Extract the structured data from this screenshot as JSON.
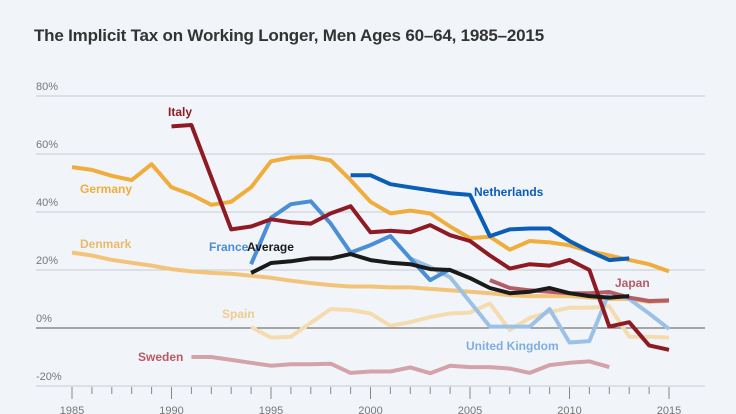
{
  "chart_data": {
    "type": "line",
    "title": "The Implicit Tax on Working Longer, Men Ages 60–64, 1985–2015",
    "xlabel": "",
    "ylabel": "",
    "xlim": [
      1985,
      2015
    ],
    "ylim": [
      -20,
      80
    ],
    "x_ticks": [
      "1985",
      "1990",
      "1995",
      "2000",
      "2005",
      "2010",
      "2015"
    ],
    "y_ticks": [
      "80%",
      "60%",
      "40%",
      "20%",
      "0%",
      "-20%"
    ],
    "grid": true,
    "background": "#f1f5f9",
    "series": [
      {
        "name": "Denmark",
        "color": "#f2c47a",
        "x": [
          1985,
          1986,
          1987,
          1988,
          1989,
          1990,
          1991,
          1992,
          1993,
          1994,
          1995,
          1996,
          1997,
          1998,
          1999,
          2000,
          2001,
          2002,
          2003,
          2004,
          2005,
          2006,
          2007,
          2008,
          2009,
          2010,
          2011,
          2012,
          2013,
          2014,
          2015
        ],
        "y": [
          26,
          25,
          23.5,
          22.5,
          21.5,
          20.3,
          19.5,
          19,
          18.7,
          18,
          17.3,
          16.3,
          15.5,
          14.8,
          14.3,
          14.3,
          14,
          14,
          13.5,
          13,
          12.5,
          12,
          11.3,
          11,
          11,
          11,
          10.5,
          10,
          10,
          9,
          9.3
        ]
      },
      {
        "name": "Spain",
        "color": "#f5dcae",
        "x": [
          1994,
          1995,
          1996,
          1997,
          1998,
          1999,
          2000,
          2001,
          2002,
          2003,
          2004,
          2005,
          2006,
          2007,
          2008,
          2009,
          2010,
          2011,
          2012,
          2013,
          2014,
          2015
        ],
        "y": [
          0.3,
          -3.3,
          -3,
          1.8,
          6.5,
          6.2,
          5,
          0.8,
          2,
          3.8,
          5,
          5.3,
          8.5,
          -0.7,
          3.5,
          5.5,
          7,
          7,
          7.5,
          -3,
          -3,
          -3.3
        ]
      },
      {
        "name": "Sweden",
        "color": "#d4a3aa",
        "x": [
          1991,
          1992,
          1993,
          1994,
          1995,
          1996,
          1997,
          1998,
          1999,
          2000,
          2001,
          2002,
          2003,
          2004,
          2005,
          2006,
          2007,
          2008,
          2009,
          2010,
          2011,
          2012
        ],
        "y": [
          -10,
          -10,
          -11,
          -12,
          -13,
          -12.5,
          -12.5,
          -12.3,
          -15.5,
          -15,
          -15,
          -13.6,
          -15.6,
          -13,
          -13.5,
          -13.5,
          -14,
          -15.5,
          -12.8,
          -12,
          -11.5,
          -13.5
        ]
      },
      {
        "name": "United Kingdom",
        "color": "#9cc1e6",
        "x": [
          2002,
          2003,
          2004,
          2005,
          2006,
          2007,
          2008,
          2009,
          2010,
          2011,
          2012,
          2013,
          2014,
          2015
        ],
        "y": [
          24,
          21,
          17.5,
          9,
          0.5,
          0.5,
          0.5,
          6.5,
          -5,
          -4.5,
          12.4,
          10,
          5,
          -0.3
        ]
      },
      {
        "name": "Japan",
        "color": "#b55d66",
        "x": [
          2006,
          2007,
          2008,
          2009,
          2010,
          2011,
          2012,
          2013,
          2014,
          2015
        ],
        "y": [
          16.5,
          13.8,
          13,
          12.5,
          12,
          12,
          12.4,
          10.5,
          9.3,
          9.5
        ]
      },
      {
        "name": "Germany",
        "color": "#f0ad3c",
        "x": [
          1985,
          1986,
          1987,
          1988,
          1989,
          1990,
          1991,
          1992,
          1993,
          1994,
          1995,
          1996,
          1997,
          1998,
          1999,
          2000,
          2001,
          2002,
          2003,
          2004,
          2005,
          2006,
          2007,
          2008,
          2009,
          2010,
          2011,
          2012,
          2013,
          2014,
          2015
        ],
        "y": [
          55.5,
          54.5,
          52.5,
          51,
          56.5,
          48.5,
          46,
          42.5,
          43.5,
          48.5,
          57.5,
          58.8,
          59,
          57.8,
          51,
          43.5,
          39.5,
          40.5,
          39.5,
          35,
          31,
          31.5,
          27,
          30,
          29.5,
          28.5,
          26.5,
          25,
          23.5,
          22,
          19.5
        ]
      },
      {
        "name": "France",
        "color": "#4a8ed6",
        "x": [
          1994,
          1995,
          1996,
          1997,
          1998,
          1999,
          2000,
          2001,
          2002,
          2003,
          2004
        ],
        "y": [
          22,
          38,
          42.7,
          43.7,
          36,
          26,
          28.6,
          31.7,
          24,
          16.5,
          20.3
        ]
      },
      {
        "name": "Netherlands",
        "color": "#0a5db8",
        "x": [
          1999,
          2000,
          2001,
          2002,
          2003,
          2004,
          2005,
          2006,
          2007,
          2008,
          2009,
          2010,
          2011,
          2012,
          2013
        ],
        "y": [
          52.7,
          52.7,
          49.6,
          48.5,
          47.5,
          46.5,
          45.9,
          31.7,
          34,
          34.3,
          34.3,
          30,
          26.5,
          23.4,
          24
        ]
      },
      {
        "name": "Italy",
        "color": "#8e1b24",
        "x": [
          1990,
          1991,
          1993,
          1994,
          1995,
          1996,
          1997,
          1998,
          1999,
          2000,
          2001,
          2002,
          2003,
          2004,
          2005,
          2006,
          2007,
          2008,
          2009,
          2010,
          2011,
          2012,
          2013,
          2014,
          2015
        ],
        "y": [
          69.5,
          70,
          34,
          35,
          37.5,
          36.5,
          36,
          39.5,
          42,
          33,
          33.5,
          33,
          35.5,
          32,
          30,
          25,
          20.5,
          22,
          21.5,
          23.5,
          20,
          0.5,
          2,
          -6,
          -7.5
        ]
      },
      {
        "name": "Average",
        "color": "#1a1a1a",
        "x": [
          1994,
          1995,
          1996,
          1997,
          1998,
          1999,
          2000,
          2001,
          2002,
          2003,
          2004,
          2005,
          2006,
          2007,
          2008,
          2009,
          2010,
          2011,
          2012,
          2013
        ],
        "y": [
          19,
          22.4,
          23,
          24,
          24,
          25.5,
          23.4,
          22.5,
          22,
          20.3,
          20,
          17.2,
          13.8,
          12,
          12.5,
          13.8,
          12,
          11,
          10.5,
          11
        ]
      }
    ]
  }
}
